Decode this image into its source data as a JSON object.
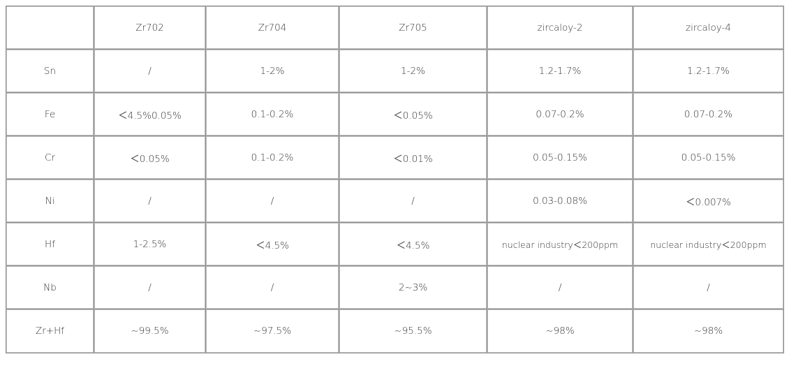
{
  "table": {
    "header": [
      "",
      "Zr702",
      "Zr704",
      "Zr705",
      "zircaloy-2",
      "zircaloy-4"
    ],
    "rows": [
      [
        "Sn",
        "/",
        "1-2%",
        "1-2%",
        "1.2-1.7%",
        "1.2-1.7%"
      ],
      [
        "Fe",
        "＜4.5%0.05%",
        "0.1-0.2%",
        "＜0.05%",
        "0.07-0.2%",
        "0.07-0.2%"
      ],
      [
        "Cr",
        "＜0.05%",
        "0.1-0.2%",
        "＜0.01%",
        "0.05-0.15%",
        "0.05-0.15%"
      ],
      [
        "Ni",
        "/",
        "/",
        "/",
        "0.03-0.08%",
        "＜0.007%"
      ],
      [
        "Hf",
        "1-2.5%",
        "＜4.5%",
        "＜4.5%",
        "nuclear industry＜200ppm",
        "nuclear industry＜200ppm"
      ],
      [
        "Nb",
        "/",
        "/",
        "2~3%",
        "/",
        "/"
      ],
      [
        "Zr+Hf",
        "~99.5%",
        "~97.5%",
        "~95.5%",
        "~98%",
        "~98%"
      ]
    ]
  },
  "colors": {
    "border": "#8f8f8f",
    "inner_border": "#bdbdbd",
    "text": "#333333",
    "background": "#ffffff"
  }
}
